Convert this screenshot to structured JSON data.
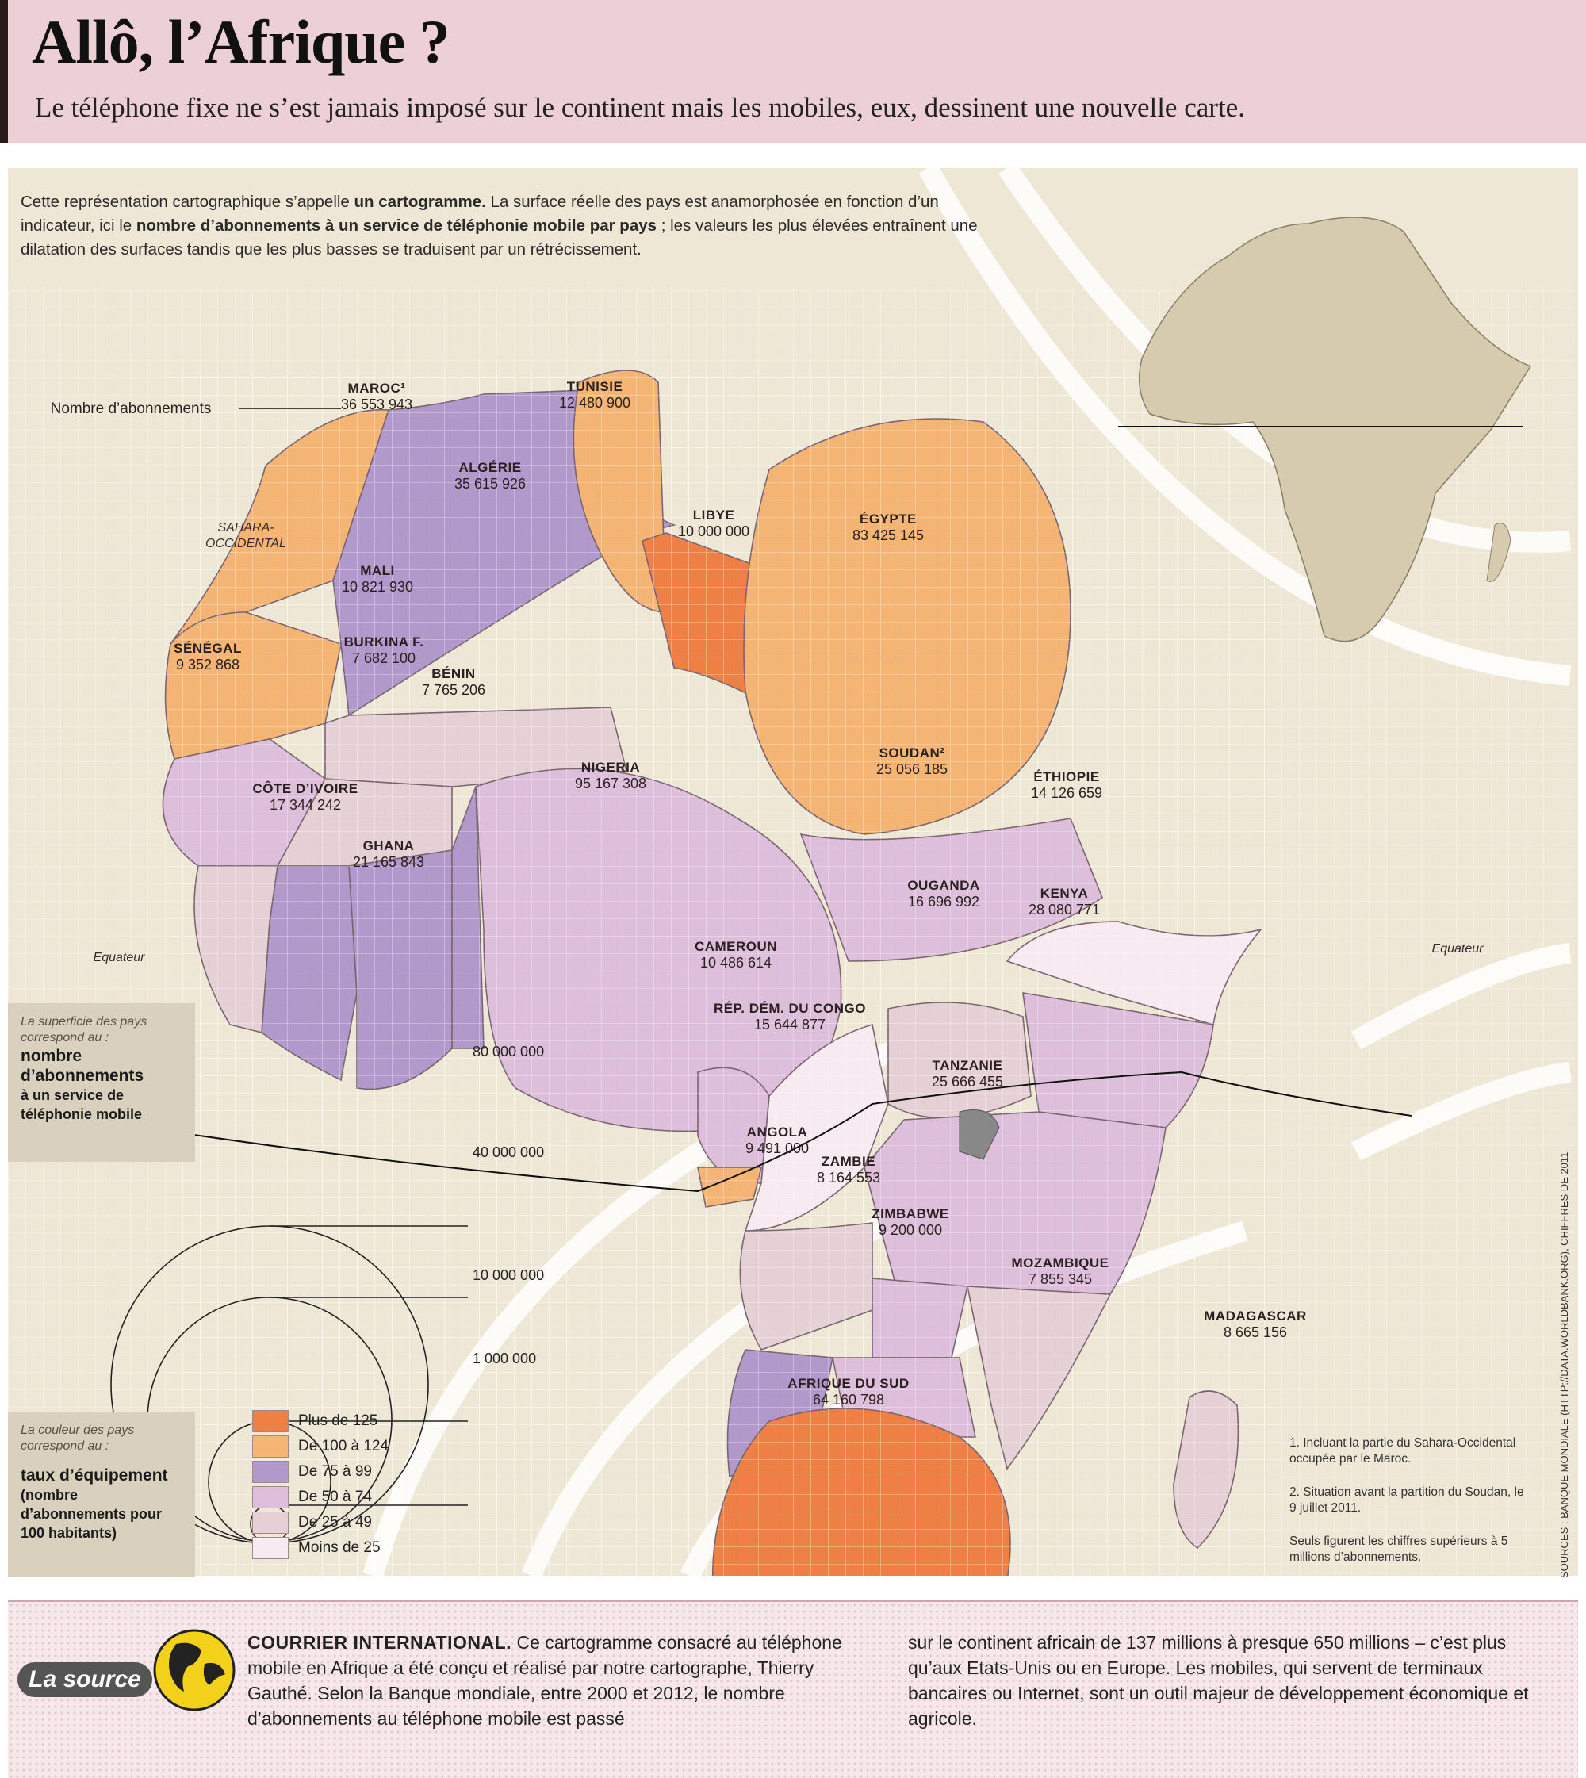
{
  "header": {
    "title": "Allô, l’Afrique ?",
    "subtitle": "Le téléphone fixe ne s’est jamais imposé sur le continent mais les mobiles, eux, dessinent une nouvelle carte."
  },
  "intro": {
    "part1": "Cette représentation cartographique s’appelle ",
    "bold1": "un cartogramme.",
    "part2": " La surface réelle des pays est anamorphosée en fonction d’un indicateur, ici le ",
    "bold2": "nombre d’abonnements à un service de téléphonie mobile par pays",
    "part3": " ; les valeurs les plus élevées entraînent une dilatation des surfaces tandis que les plus basses se traduisent par un rétrécissement."
  },
  "map_labels": {
    "callout": "Nombre d’abonnements",
    "equator_left": "Equateur",
    "equator_right": "Equateur",
    "sahara": "SAHARA-OCCIDENTAL"
  },
  "countries": [
    {
      "name": "MAROC¹",
      "value": "36 553 943",
      "fill": "#f4b574"
    },
    {
      "name": "TUNISIE",
      "value": "12 480 900",
      "fill": "#f4b574"
    },
    {
      "name": "ALGÉRIE",
      "value": "35 615 926",
      "fill": "#b199cc"
    },
    {
      "name": "LIBYE",
      "value": "10 000 000",
      "fill": "#ee7f45"
    },
    {
      "name": "ÉGYPTE",
      "value": "83 425 145",
      "fill": "#f4b574"
    },
    {
      "name": "MALI",
      "value": "10 821 930",
      "fill": "#e5d0d6"
    },
    {
      "name": "SÉNÉGAL",
      "value": "9 352 868",
      "fill": "#ddbfdc"
    },
    {
      "name": "BURKINA F.",
      "value": "7 682 100",
      "fill": "#e5d0d6"
    },
    {
      "name": "BÉNIN",
      "value": "7 765 206",
      "fill": "#b199cc"
    },
    {
      "name": "NIGERIA",
      "value": "95 167 308",
      "fill": "#ddbfdc"
    },
    {
      "name": "SOUDAN²",
      "value": "25 056 185",
      "fill": "#ddbfdc"
    },
    {
      "name": "ÉTHIOPIE",
      "value": "14 126 659",
      "fill": "#f7eaf0"
    },
    {
      "name": "CÔTE D’IVOIRE",
      "value": "17 344 242",
      "fill": "#b199cc"
    },
    {
      "name": "GHANA",
      "value": "21 165 843",
      "fill": "#b199cc"
    },
    {
      "name": "OUGANDA",
      "value": "16 696 992",
      "fill": "#e5d0d6"
    },
    {
      "name": "KENYA",
      "value": "28 080 771",
      "fill": "#ddbfdc"
    },
    {
      "name": "CAMEROUN",
      "value": "10 486 614",
      "fill": "#ddbfdc"
    },
    {
      "name": "RÉP. DÉM. DU CONGO",
      "value": "15 644 877",
      "fill": "#f7eaf0"
    },
    {
      "name": "TANZANIE",
      "value": "25 666 455",
      "fill": "#ddbfdc"
    },
    {
      "name": "ANGOLA",
      "value": "9 491 000",
      "fill": "#e5d0d6"
    },
    {
      "name": "ZAMBIE",
      "value": "8 164 553",
      "fill": "#ddbfdc"
    },
    {
      "name": "ZIMBABWE",
      "value": "9 200 000",
      "fill": "#ddbfdc"
    },
    {
      "name": "MOZAMBIQUE",
      "value": "7 855 345",
      "fill": "#e5d0d6"
    },
    {
      "name": "MADAGASCAR",
      "value": "8 665 156",
      "fill": "#e5d0d6"
    },
    {
      "name": "AFRIQUE DU SUD",
      "value": "64 160 798",
      "fill": "#ee7f45"
    }
  ],
  "size_legend": {
    "intro": "La superficie des pays correspond au :",
    "head": "nombre d’abonnements",
    "sub": "à un service de téléphonie mobile",
    "circles": [
      "80 000 000",
      "40 000 000",
      "10 000 000",
      "1 000 000"
    ]
  },
  "color_legend": {
    "intro": "La couleur des pays correspond au :",
    "head": "taux d’équipement",
    "sub": "(nombre d’abonnements pour 100 habitants)",
    "classes": [
      {
        "label": "Plus de 125",
        "color": "#ee7f45"
      },
      {
        "label": "De 100 à 124",
        "color": "#f4b574"
      },
      {
        "label": "De 75 à 99",
        "color": "#b199cc"
      },
      {
        "label": "De 50 à 74",
        "color": "#ddbfdc"
      },
      {
        "label": "De 25 à 49",
        "color": "#e5d0d6"
      },
      {
        "label": "Moins de 25",
        "color": "#f7eaf0"
      }
    ]
  },
  "notes": [
    "1. Incluant la partie du Sahara-Occidental occupée par le Maroc.",
    "2. Situation avant la partition du Soudan, le 9 juillet 2011.",
    "Seuls figurent les chiffres supérieurs à 5 millions d’abonnements."
  ],
  "sources": "SOURCES : BANQUE MONDIALE (HTTP://DATA.WORLDBANK.ORG), CHIFFRES DE 2011",
  "footer": {
    "badge": "La source",
    "brand": "COURRIER INTERNATIONAL.",
    "col1": " Ce cartogramme consacré au téléphone mobile en Afrique a été conçu et réalisé par notre cartographe, Thierry Gauthé. Selon la Banque mondiale, entre 2000 et 2012, le nombre d’abonnements au téléphone mobile est passé",
    "col2": "sur le continent africain de 137 millions à presque 650 millions – c’est plus qu’aux Etats-Unis ou en Europe. Les mobiles, qui servent de terminaux bancaires ou Internet, sont un outil majeur de développement économique et agricole."
  }
}
